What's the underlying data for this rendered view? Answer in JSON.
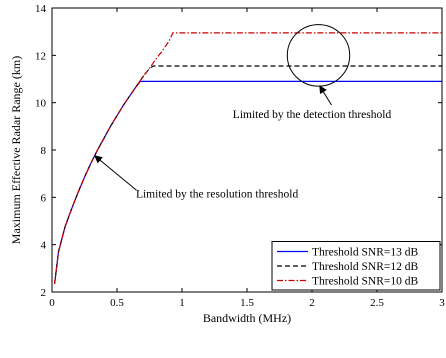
{
  "chart_data": {
    "type": "line",
    "title": "",
    "xlabel": "Bandwidth (MHz)",
    "ylabel": "Maximum Effective Radar Range (km)",
    "xlim": [
      0,
      3
    ],
    "ylim": [
      2,
      14
    ],
    "xticks": [
      0,
      0.5,
      1,
      1.5,
      2,
      2.5,
      3
    ],
    "xtick_labels": [
      "0",
      "0.5",
      "1",
      "1.5",
      "2",
      "2.5",
      "3"
    ],
    "yticks": [
      2,
      4,
      6,
      8,
      10,
      12,
      14
    ],
    "ytick_labels": [
      "2",
      "4",
      "6",
      "8",
      "10",
      "12",
      "14"
    ],
    "grid": false,
    "legend_position": "bottom-right",
    "series": [
      {
        "name": "Threshold SNR=13 dB",
        "color": "#0000ff",
        "style": "solid",
        "x": [
          0.02,
          0.05,
          0.1,
          0.15,
          0.2,
          0.25,
          0.3,
          0.35,
          0.4,
          0.45,
          0.5,
          0.55,
          0.6,
          0.65,
          0.68,
          1.0,
          1.5,
          2.0,
          2.5,
          3.0
        ],
        "y": [
          2.35,
          3.7,
          4.75,
          5.5,
          6.2,
          6.85,
          7.45,
          8.0,
          8.5,
          9.0,
          9.45,
          9.9,
          10.3,
          10.7,
          10.9,
          10.9,
          10.9,
          10.9,
          10.9,
          10.9
        ]
      },
      {
        "name": "Threshold SNR=12 dB",
        "color": "#000000",
        "style": "dashed",
        "x": [
          0.02,
          0.05,
          0.1,
          0.15,
          0.2,
          0.25,
          0.3,
          0.35,
          0.4,
          0.45,
          0.5,
          0.55,
          0.6,
          0.65,
          0.7,
          0.75,
          0.78,
          1.0,
          1.5,
          2.0,
          2.5,
          3.0
        ],
        "y": [
          2.35,
          3.7,
          4.75,
          5.5,
          6.2,
          6.85,
          7.45,
          8.0,
          8.5,
          9.0,
          9.45,
          9.9,
          10.3,
          10.7,
          11.1,
          11.45,
          11.55,
          11.55,
          11.55,
          11.55,
          11.55,
          11.55
        ]
      },
      {
        "name": "Threshold SNR=10 dB",
        "color": "#cc0000",
        "style": "dashdot",
        "x": [
          0.02,
          0.05,
          0.1,
          0.15,
          0.2,
          0.25,
          0.3,
          0.35,
          0.4,
          0.45,
          0.5,
          0.55,
          0.6,
          0.65,
          0.7,
          0.75,
          0.8,
          0.85,
          0.9,
          0.93,
          1.0,
          1.5,
          2.0,
          2.5,
          3.0
        ],
        "y": [
          2.35,
          3.7,
          4.75,
          5.5,
          6.2,
          6.85,
          7.45,
          8.0,
          8.5,
          9.0,
          9.45,
          9.9,
          10.3,
          10.7,
          11.1,
          11.45,
          11.85,
          12.2,
          12.6,
          12.95,
          12.95,
          12.95,
          12.95,
          12.95,
          12.95
        ]
      }
    ],
    "annotations": [
      {
        "text": "Limited by the detection threshold",
        "text_x": 2.0,
        "text_y": 9.35,
        "arrow_to_x": 2.06,
        "arrow_to_y": 10.7,
        "arrow_from_x": 2.15,
        "arrow_from_y": 9.9
      },
      {
        "text": "Limited by the resolution threshold",
        "text_x": 1.27,
        "text_y": 6.0,
        "arrow_to_x": 0.33,
        "arrow_to_y": 7.75,
        "arrow_from_x": 0.65,
        "arrow_from_y": 6.3
      }
    ],
    "ellipse": {
      "cx": 2.05,
      "cy": 12.0,
      "rx": 0.24,
      "ry": 1.3
    }
  }
}
